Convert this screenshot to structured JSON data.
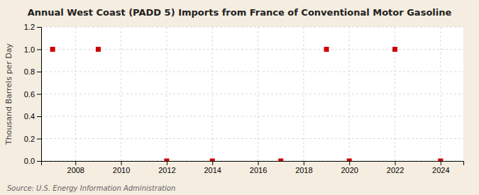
{
  "chart_data": {
    "type": "scatter",
    "title": "Annual West Coast (PADD 5) Imports from France of Conventional Motor Gasoline",
    "ylabel": "Thousand Barrels per Day",
    "annotations": [
      "Source: U.S. Energy Information Administration"
    ],
    "x": [
      2007,
      2009,
      2012,
      2014,
      2017,
      2019,
      2020,
      2022,
      2024
    ],
    "values": [
      1.0,
      1.0,
      0.0,
      0.0,
      0.0,
      1.0,
      0.0,
      1.0,
      0.0
    ],
    "color": "#cc0000",
    "marker": "square",
    "xlim": [
      2006.5,
      2025
    ],
    "xticks": [
      2008,
      2010,
      2012,
      2014,
      2016,
      2018,
      2020,
      2022,
      2024
    ],
    "ylim": [
      0.0,
      1.2
    ],
    "yticks": [
      {
        "value": 0.0,
        "label": "0.0"
      },
      0.2,
      0.4,
      0.6,
      0.8,
      {
        "value": 1.0,
        "label": "1.0"
      },
      1.2
    ],
    "grid": true
  }
}
